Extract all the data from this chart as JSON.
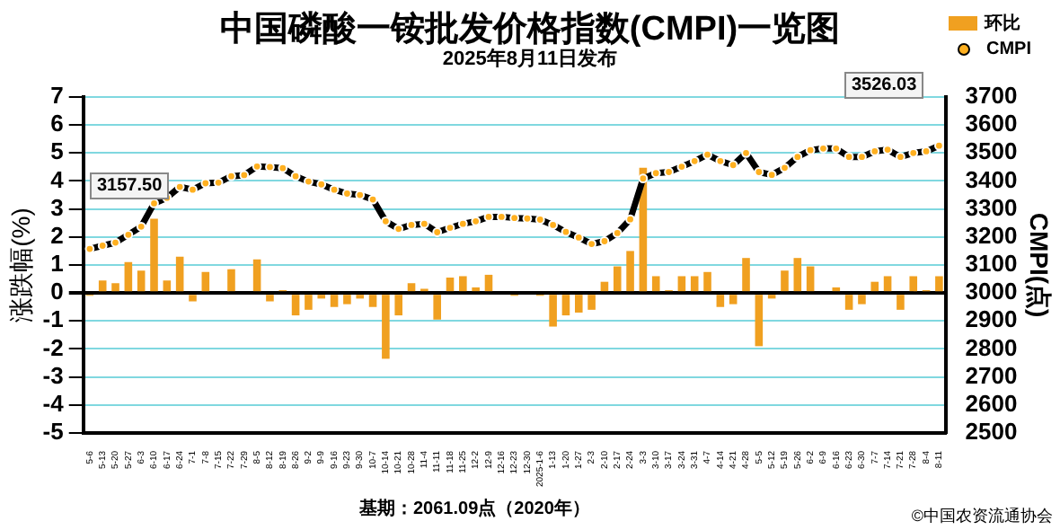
{
  "chart_data": {
    "type": "bar",
    "title": "中国磷酸一铵批发价格指数(CMPI)一览图",
    "subtitle": "2025年8月11日发布",
    "ylabel": "涨跌幅(%)",
    "y2label": "CMPI(点)",
    "categories": [
      "5-6",
      "5-13",
      "5-20",
      "5-27",
      "6-3",
      "6-10",
      "6-17",
      "6-24",
      "7-1",
      "7-8",
      "7-15",
      "7-22",
      "7-29",
      "8-5",
      "8-12",
      "8-19",
      "8-26",
      "9-2",
      "9-9",
      "9-16",
      "9-23",
      "9-30",
      "10-7",
      "10-14",
      "10-21",
      "10-28",
      "11-4",
      "11-11",
      "11-18",
      "11-25",
      "12-2",
      "12-9",
      "12-16",
      "12-23",
      "12-30",
      "2025-1-6",
      "1-13",
      "1-20",
      "1-27",
      "2-3",
      "2-10",
      "2-17",
      "2-24",
      "3-3",
      "3-10",
      "3-17",
      "3-24",
      "3-31",
      "4-7",
      "4-14",
      "4-21",
      "4-28",
      "5-5",
      "5-12",
      "5-19",
      "5-26",
      "6-2",
      "6-9",
      "6-16",
      "6-23",
      "6-30",
      "7-7",
      "7-14",
      "7-21",
      "7-28",
      "8-4",
      "8-11"
    ],
    "series": [
      {
        "name": "环比",
        "color": "#f0a020",
        "values": [
          -0.1,
          0.45,
          0.35,
          1.1,
          0.8,
          2.65,
          0.45,
          1.3,
          -0.3,
          0.75,
          null,
          0.85,
          0,
          1.2,
          -0.3,
          0.1,
          -0.8,
          -0.6,
          -0.2,
          -0.5,
          -0.4,
          -0.2,
          -0.5,
          -2.35,
          -0.8,
          0.35,
          0.15,
          -0.95,
          0.55,
          0.6,
          0.2,
          0.65,
          0,
          -0.1,
          null,
          -0.1,
          -1.2,
          -0.8,
          -0.7,
          -0.6,
          0.4,
          0.95,
          1.5,
          4.47,
          0.6,
          0.1,
          0.6,
          0.6,
          0.75,
          -0.5,
          -0.4,
          1.25,
          -1.9,
          -0.2,
          0.8,
          1.25,
          0.95,
          0,
          0.2,
          -0.6,
          -0.4,
          0.4,
          0.6,
          -0.6,
          0.6,
          0.1,
          0.6
        ]
      },
      {
        "name": "CMPI",
        "type": "line",
        "axis": "y2",
        "color": "#000000",
        "values": [
          3157.5,
          3169,
          3180,
          3208,
          3237,
          3320,
          3340,
          3379,
          3369,
          3392,
          3394,
          3417,
          3421,
          3452,
          3450,
          3446,
          3417,
          3398,
          3388,
          3369,
          3355,
          3350,
          3334,
          3256,
          3229,
          3243,
          3247,
          3217,
          3233,
          3247,
          3256,
          3272,
          3272,
          3268,
          3266,
          3262,
          3243,
          3218,
          3198,
          3175,
          3185,
          3214,
          3263,
          3409,
          3428,
          3432,
          3451,
          3471,
          3494,
          3471,
          3457,
          3500,
          3432,
          3422,
          3447,
          3486,
          3510,
          3516,
          3516,
          3486,
          3486,
          3506,
          3512,
          3486,
          3500,
          3506,
          3526.03
        ]
      }
    ],
    "ylim": [
      -5,
      7
    ],
    "yticks": [
      -5,
      -4,
      -3,
      -2,
      -1,
      0,
      1,
      2,
      3,
      4,
      5,
      6,
      7
    ],
    "y2lim": [
      2500,
      3700
    ],
    "y2ticks": [
      2500,
      2600,
      2700,
      2800,
      2900,
      3000,
      3100,
      3200,
      3300,
      3400,
      3500,
      3600,
      3700
    ],
    "grid": "y",
    "legend": "top right",
    "marker": "circle",
    "annotations": [
      "3157.50",
      "3526.03",
      "基期：2061.09点（2020年）",
      "©中国农资流通协会"
    ]
  }
}
